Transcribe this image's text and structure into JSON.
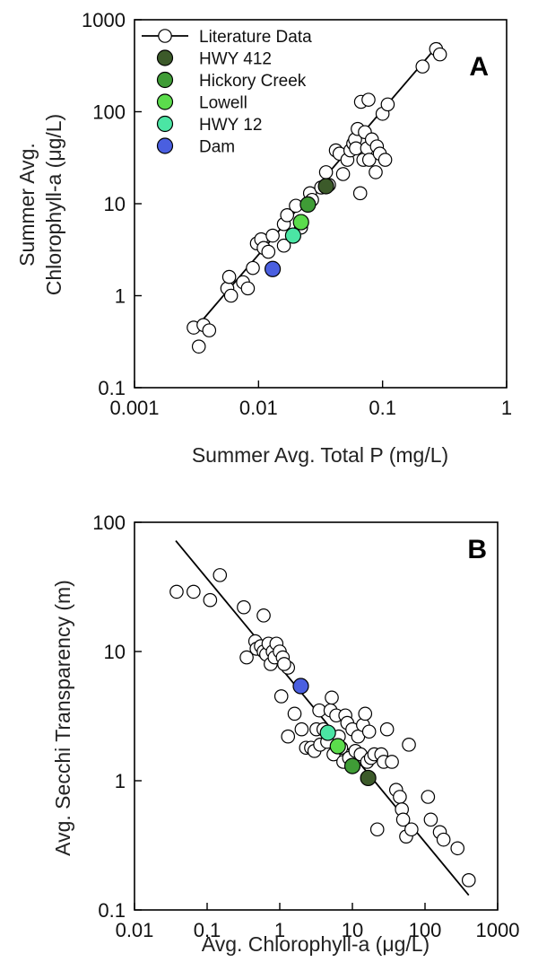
{
  "chart_data": [
    {
      "type": "scatter",
      "panel_label": "A",
      "xlabel": "Summer Avg. Total P (mg/L)",
      "ylabel_line1": "Summer Avg.",
      "ylabel_line2": "Chlorophyll-a (μg/L)",
      "xscale": "log",
      "yscale": "log",
      "xlim": [
        0.001,
        1
      ],
      "ylim": [
        0.1,
        1000
      ],
      "xticks": [
        "0.001",
        "0.01",
        "0.1",
        "1"
      ],
      "yticks": [
        "0.1",
        "1",
        "10",
        "100",
        "1000"
      ],
      "legend_placement": "top-left",
      "legend": [
        {
          "label": "Literature Data",
          "marker": "open-circle-line",
          "color": "#000000"
        },
        {
          "label": "HWY 412",
          "marker": "filled-circle",
          "color": "#3c5a2a"
        },
        {
          "label": "Hickory Creek",
          "marker": "filled-circle",
          "color": "#3f9c36"
        },
        {
          "label": "Lowell",
          "marker": "filled-circle",
          "color": "#5bdc4c"
        },
        {
          "label": "HWY 12",
          "marker": "filled-circle",
          "color": "#4be5a4"
        },
        {
          "label": "Dam",
          "marker": "filled-circle",
          "color": "#4a5fe0"
        }
      ],
      "regression_line": {
        "x": [
          0.003,
          0.29
        ],
        "y": [
          0.42,
          560
        ]
      },
      "literature_points": [
        [
          0.003,
          0.45
        ],
        [
          0.0033,
          0.28
        ],
        [
          0.0036,
          0.48
        ],
        [
          0.004,
          0.42
        ],
        [
          0.0056,
          1.2
        ],
        [
          0.0058,
          1.6
        ],
        [
          0.006,
          1.0
        ],
        [
          0.0075,
          1.4
        ],
        [
          0.0082,
          1.2
        ],
        [
          0.009,
          2.0
        ],
        [
          0.0097,
          3.7
        ],
        [
          0.0105,
          4.1
        ],
        [
          0.011,
          3.3
        ],
        [
          0.012,
          3.0
        ],
        [
          0.013,
          4.5
        ],
        [
          0.016,
          6.0
        ],
        [
          0.017,
          7.5
        ],
        [
          0.016,
          3.5
        ],
        [
          0.02,
          9.5
        ],
        [
          0.022,
          5.5
        ],
        [
          0.026,
          13
        ],
        [
          0.027,
          11
        ],
        [
          0.032,
          15
        ],
        [
          0.035,
          22
        ],
        [
          0.037,
          16
        ],
        [
          0.042,
          38
        ],
        [
          0.045,
          35
        ],
        [
          0.048,
          21
        ],
        [
          0.052,
          30
        ],
        [
          0.055,
          38
        ],
        [
          0.058,
          45
        ],
        [
          0.06,
          50
        ],
        [
          0.061,
          40
        ],
        [
          0.063,
          65
        ],
        [
          0.066,
          13
        ],
        [
          0.067,
          128
        ],
        [
          0.07,
          30
        ],
        [
          0.072,
          60
        ],
        [
          0.075,
          40
        ],
        [
          0.077,
          135
        ],
        [
          0.078,
          30
        ],
        [
          0.082,
          50
        ],
        [
          0.088,
          22
        ],
        [
          0.09,
          42
        ],
        [
          0.095,
          35
        ],
        [
          0.1,
          95
        ],
        [
          0.105,
          30
        ],
        [
          0.11,
          120
        ],
        [
          0.21,
          310
        ],
        [
          0.27,
          480
        ],
        [
          0.29,
          420
        ]
      ],
      "site_points": [
        {
          "site": "HWY 412",
          "x": 0.035,
          "y": 15.5
        },
        {
          "site": "Hickory Creek",
          "x": 0.025,
          "y": 9.8
        },
        {
          "site": "Lowell",
          "x": 0.022,
          "y": 6.3
        },
        {
          "site": "HWY 12",
          "x": 0.019,
          "y": 4.5
        },
        {
          "site": "Dam",
          "x": 0.013,
          "y": 1.95
        }
      ]
    },
    {
      "type": "scatter",
      "panel_label": "B",
      "xlabel": "Avg. Chlorophyll-a (μg/L)",
      "ylabel": "Avg. Secchi Transparency (m)",
      "xscale": "log",
      "yscale": "log",
      "xlim": [
        0.01,
        1000
      ],
      "ylim": [
        0.1,
        100
      ],
      "xticks": [
        "0.01",
        "0.1",
        "1",
        "10",
        "100",
        "1000"
      ],
      "yticks": [
        "0.1",
        "1",
        "10",
        "100"
      ],
      "regression_line": {
        "x": [
          0.037,
          400
        ],
        "y": [
          72,
          0.13
        ]
      },
      "literature_points": [
        [
          0.038,
          29
        ],
        [
          0.065,
          29
        ],
        [
          0.11,
          25
        ],
        [
          0.15,
          39
        ],
        [
          0.32,
          22
        ],
        [
          0.35,
          9
        ],
        [
          0.46,
          12
        ],
        [
          0.48,
          10.5
        ],
        [
          0.55,
          11
        ],
        [
          0.6,
          19
        ],
        [
          0.6,
          10
        ],
        [
          0.65,
          9.5
        ],
        [
          0.7,
          11.5
        ],
        [
          0.75,
          8
        ],
        [
          0.8,
          10
        ],
        [
          0.85,
          9
        ],
        [
          0.9,
          11.5
        ],
        [
          1.0,
          10
        ],
        [
          1.05,
          4.5
        ],
        [
          1.1,
          9
        ],
        [
          1.3,
          7.5
        ],
        [
          1.15,
          8
        ],
        [
          1.3,
          2.2
        ],
        [
          1.6,
          3.3
        ],
        [
          2.0,
          2.5
        ],
        [
          2.3,
          1.8
        ],
        [
          2.7,
          1.8
        ],
        [
          3.0,
          1.7
        ],
        [
          3.2,
          2.5
        ],
        [
          3.5,
          3.5
        ],
        [
          3.6,
          1.9
        ],
        [
          4.0,
          2.5
        ],
        [
          4.5,
          2.0
        ],
        [
          5.0,
          3.5
        ],
        [
          5.2,
          4.4
        ],
        [
          5.5,
          1.6
        ],
        [
          6.0,
          3.2
        ],
        [
          6.5,
          2.2
        ],
        [
          7.0,
          1.8
        ],
        [
          7.5,
          1.4
        ],
        [
          8.0,
          3.2
        ],
        [
          8.5,
          2.8
        ],
        [
          9.0,
          1.5
        ],
        [
          10,
          2.5
        ],
        [
          11,
          1.7
        ],
        [
          12,
          2.2
        ],
        [
          13,
          1.6
        ],
        [
          14,
          2.7
        ],
        [
          15,
          3.3
        ],
        [
          16,
          1.4
        ],
        [
          17,
          2.4
        ],
        [
          18,
          1.5
        ],
        [
          20,
          1.6
        ],
        [
          22,
          0.42
        ],
        [
          25,
          1.6
        ],
        [
          27,
          1.4
        ],
        [
          30,
          2.5
        ],
        [
          35,
          1.4
        ],
        [
          40,
          0.85
        ],
        [
          45,
          0.75
        ],
        [
          48,
          0.6
        ],
        [
          50,
          0.5
        ],
        [
          55,
          0.37
        ],
        [
          60,
          1.9
        ],
        [
          65,
          0.42
        ],
        [
          110,
          0.75
        ],
        [
          120,
          0.5
        ],
        [
          160,
          0.4
        ],
        [
          180,
          0.35
        ],
        [
          280,
          0.3
        ],
        [
          400,
          0.17
        ]
      ],
      "site_points": [
        {
          "site": "HWY 412",
          "x": 16.5,
          "y": 1.05
        },
        {
          "site": "Hickory Creek",
          "x": 10,
          "y": 1.3
        },
        {
          "site": "Lowell",
          "x": 6.3,
          "y": 1.85
        },
        {
          "site": "HWY 12",
          "x": 4.6,
          "y": 2.35
        },
        {
          "site": "Dam",
          "x": 1.95,
          "y": 5.4
        }
      ]
    }
  ]
}
